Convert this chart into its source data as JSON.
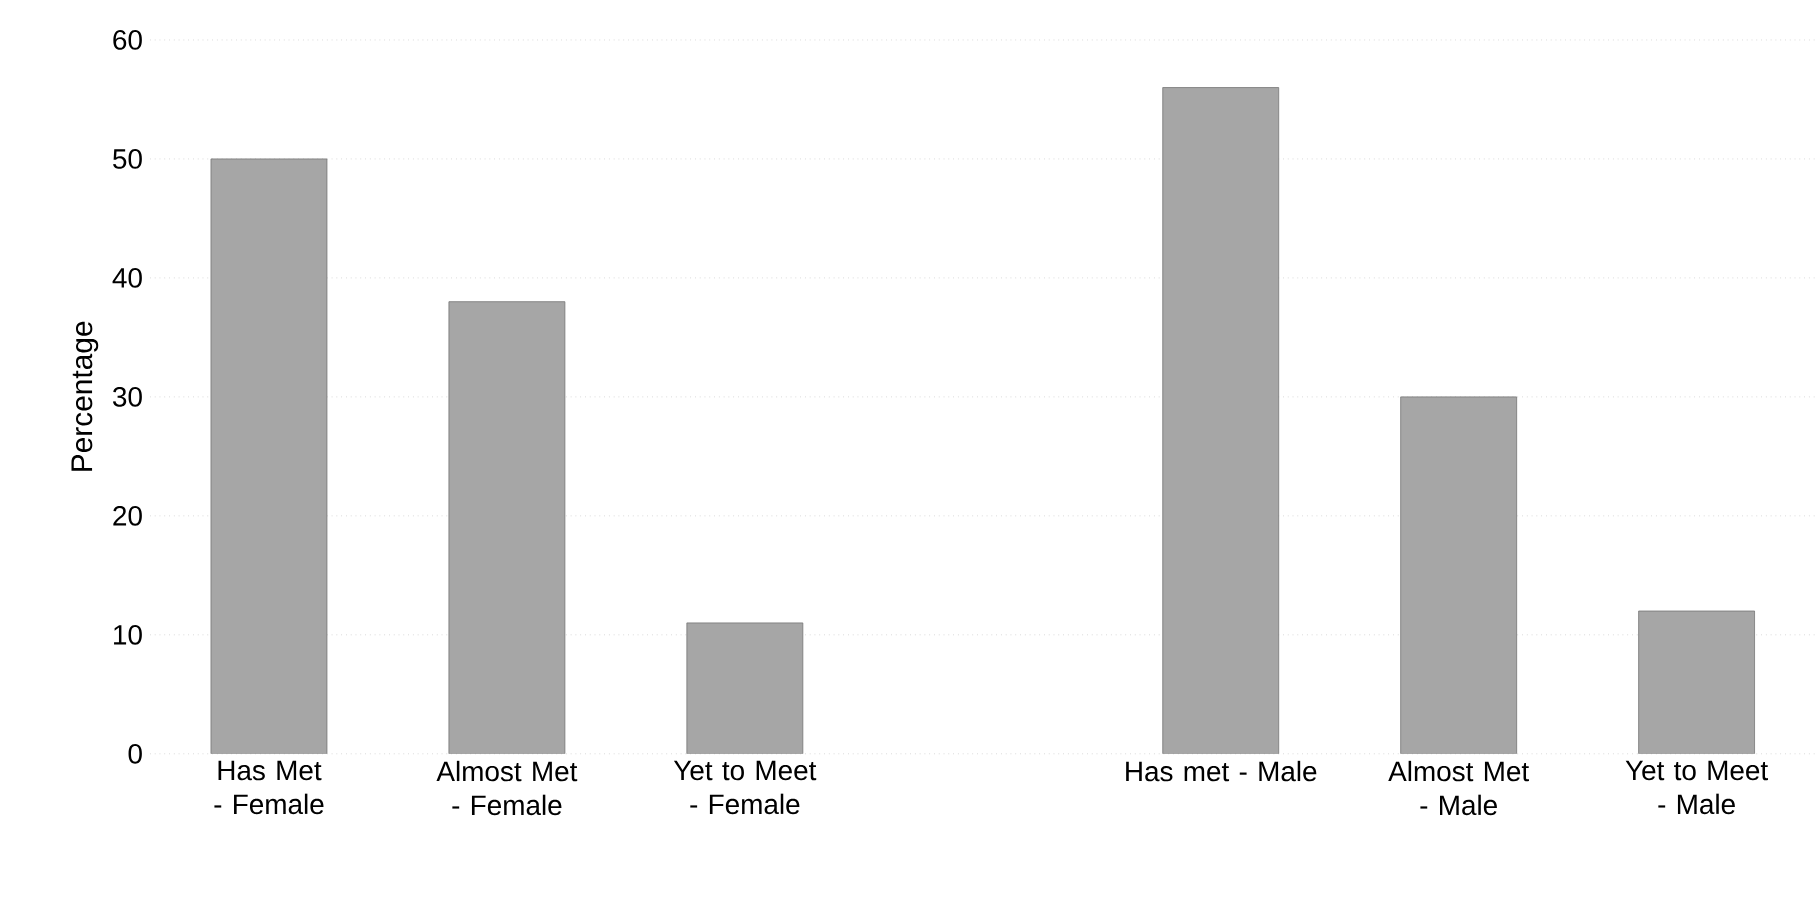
{
  "chart_data": {
    "type": "bar",
    "ylabel": "Percentage",
    "categories": [
      "Has  Met - Female",
      "Almost Met - Female",
      "Yet to Meet - Female",
      null,
      "Has met - Male",
      "Almost Met - Male",
      "Yet to Meet - Male"
    ],
    "values": [
      50,
      38,
      11,
      null,
      56,
      30,
      12
    ],
    "color": "#a6a6a6",
    "ylim": [
      0,
      60
    ],
    "yticks": [
      0,
      10,
      20,
      30,
      40,
      50,
      60
    ],
    "grid": "y"
  }
}
